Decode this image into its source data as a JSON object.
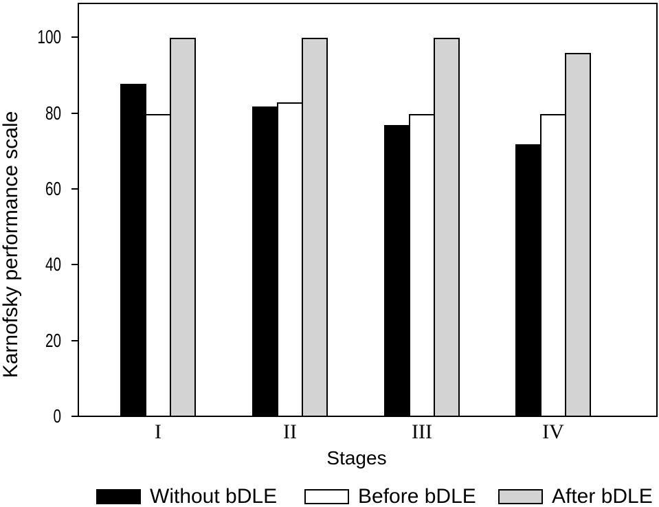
{
  "chart_data": {
    "type": "bar",
    "title": "",
    "xlabel": "Stages",
    "ylabel": "Karnofsky performance scale",
    "categories": [
      "I",
      "II",
      "III",
      "IV"
    ],
    "series": [
      {
        "name": "Without bDLE",
        "color": "#000000",
        "values": [
          88,
          82,
          77,
          72
        ]
      },
      {
        "name": "Before bDLE",
        "color": "#ffffff",
        "values": [
          80,
          83,
          80,
          80
        ]
      },
      {
        "name": "After bDLE",
        "color": "#d3d3d3",
        "values": [
          100,
          100,
          100,
          96
        ]
      }
    ],
    "ylim": [
      0,
      109
    ],
    "yticks": [
      0,
      20,
      40,
      60,
      80,
      100
    ],
    "grid": false,
    "legend_position": "bottom",
    "bar_border_color": "#000000",
    "axis_color": "#000000",
    "background_color": "#ffffff"
  }
}
